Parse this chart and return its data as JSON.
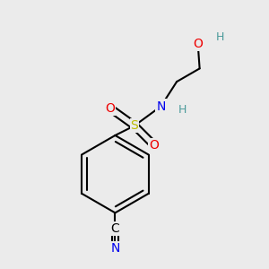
{
  "bg_color": "#ebebeb",
  "atom_colors": {
    "C": "#000000",
    "H": "#4a9a9a",
    "N": "#0000ee",
    "O": "#ee0000",
    "S": "#bbbb00"
  },
  "bond_color": "#000000",
  "bond_width": 1.5,
  "figsize": [
    3.0,
    3.0
  ],
  "dpi": 100,
  "xlim": [
    0,
    3.0
  ],
  "ylim": [
    0,
    3.0
  ]
}
